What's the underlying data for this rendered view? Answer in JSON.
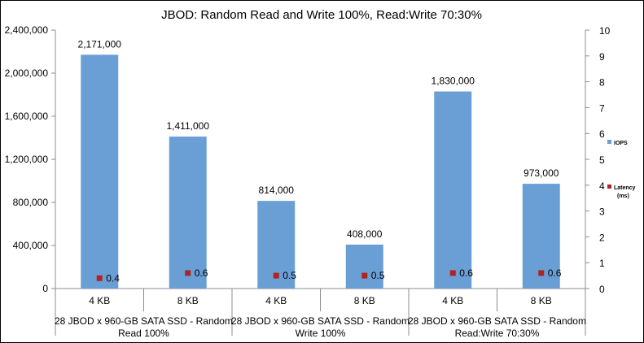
{
  "chart_data": {
    "type": "bar",
    "title": "JBOD: Random Read and Write 100%, Read:Write 70:30%",
    "categories": [
      "4 KB",
      "8 KB",
      "4 KB",
      "8 KB",
      "4 KB",
      "8 KB"
    ],
    "groups": [
      {
        "label_line1": "28 JBOD x 960-GB SATA SSD - Random",
        "label_line2": "Read 100%"
      },
      {
        "label_line1": "28 JBOD x 960-GB SATA SSD - Random",
        "label_line2": "Write 100%"
      },
      {
        "label_line1": "28 JBOD x 960-GB SATA SSD - Random",
        "label_line2": "Read:Write 70:30%"
      }
    ],
    "series": [
      {
        "name": "IOPS",
        "axis": "left",
        "type": "bar",
        "color": "#6a9fd6",
        "values": [
          2171000,
          1411000,
          814000,
          408000,
          1830000,
          973000
        ],
        "labels": [
          "2,171,000",
          "1,411,000",
          "814,000",
          "408,000",
          "1,830,000",
          "973,000"
        ]
      },
      {
        "name": "Latency",
        "name_line2": "(ms)",
        "axis": "right",
        "type": "scatter",
        "color": "#b22222",
        "values": [
          0.4,
          0.6,
          0.5,
          0.5,
          0.6,
          0.6
        ],
        "labels": [
          "0.4",
          "0.6",
          "0.5",
          "0.5",
          "0.6",
          "0.6"
        ]
      }
    ],
    "left_axis": {
      "ylim": [
        0,
        2400000
      ],
      "ticks": [
        0,
        400000,
        800000,
        1200000,
        1600000,
        2000000,
        2400000
      ],
      "tick_labels": [
        "0",
        "400,000",
        "800,000",
        "1,200,000",
        "1,600,000",
        "2,000,000",
        "2,400,000"
      ]
    },
    "right_axis": {
      "ylim": [
        0,
        10
      ],
      "ticks": [
        0,
        1,
        2,
        3,
        4,
        5,
        6,
        7,
        8,
        9,
        10
      ],
      "tick_labels": [
        "0",
        "1",
        "2",
        "3",
        "4",
        "5",
        "6",
        "7",
        "8",
        "9",
        "10"
      ]
    },
    "grid": false,
    "legend_position": "right"
  }
}
